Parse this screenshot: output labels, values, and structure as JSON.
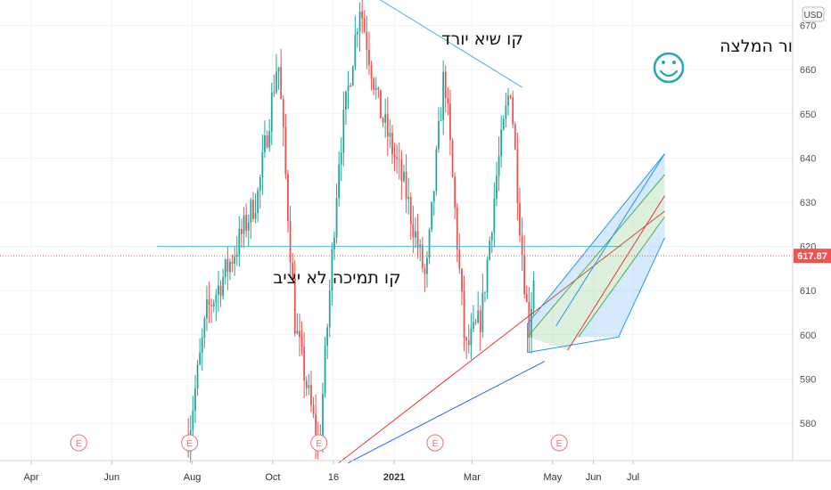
{
  "chart_data": {
    "type": "candlestick",
    "currency": "USD",
    "last_price": "617.87",
    "ylim": [
      571,
      673
    ],
    "y_ticks": [
      580,
      590,
      600,
      610,
      620,
      630,
      640,
      650,
      660,
      670
    ],
    "x_ticks": [
      {
        "label": "Apr",
        "date": "2020-04-01",
        "bold": false
      },
      {
        "label": "Jun",
        "date": "2020-06-01",
        "bold": false
      },
      {
        "label": "Aug",
        "date": "2020-08-01",
        "bold": false
      },
      {
        "label": "Oct",
        "date": "2020-10-01",
        "bold": false
      },
      {
        "label": "16",
        "date": "2020-11-16",
        "bold": false
      },
      {
        "label": "2021",
        "date": "2021-01-01",
        "bold": true
      },
      {
        "label": "Mar",
        "date": "2021-03-01",
        "bold": false
      },
      {
        "label": "May",
        "date": "2021-05-01",
        "bold": false
      },
      {
        "label": "Jun",
        "date": "2021-06-01",
        "bold": false
      },
      {
        "label": "Jul",
        "date": "2021-07-01",
        "bold": false
      }
    ],
    "key_points": [
      {
        "date": "2020-07-29",
        "price": 577
      },
      {
        "date": "2020-08-12",
        "price": 605
      },
      {
        "date": "2020-09-01",
        "price": 618
      },
      {
        "date": "2020-09-20",
        "price": 632
      },
      {
        "date": "2020-10-05",
        "price": 663
      },
      {
        "date": "2020-10-18",
        "price": 602
      },
      {
        "date": "2020-11-05",
        "price": 574
      },
      {
        "date": "2020-11-20",
        "price": 640
      },
      {
        "date": "2020-12-06",
        "price": 675
      },
      {
        "date": "2020-12-20",
        "price": 652
      },
      {
        "date": "2021-01-10",
        "price": 632
      },
      {
        "date": "2021-01-25",
        "price": 612
      },
      {
        "date": "2021-02-08",
        "price": 660
      },
      {
        "date": "2021-02-24",
        "price": 596
      },
      {
        "date": "2021-03-08",
        "price": 604
      },
      {
        "date": "2021-03-20",
        "price": 637
      },
      {
        "date": "2021-03-30",
        "price": 657
      },
      {
        "date": "2021-04-07",
        "price": 622
      },
      {
        "date": "2021-04-13",
        "price": 601
      },
      {
        "date": "2021-04-18",
        "price": 617.87
      }
    ],
    "earnings_markers": [
      "2020-05-07",
      "2020-07-30",
      "2020-11-05",
      "2021-02-01",
      "2021-05-06"
    ],
    "earnings_label": "E",
    "annotations": [
      {
        "id": "descending-top-line",
        "text": "קו שיא יורד"
      },
      {
        "id": "unstable-support-line",
        "text": "קו תמיכה לא יציב"
      },
      {
        "id": "recommendation-label",
        "text": "ור המלצה"
      }
    ],
    "emoji": "☺",
    "horizontal_support": 620,
    "descending_line": [
      {
        "date": "2020-12-15",
        "price": 677
      },
      {
        "date": "2021-04-08",
        "price": 656
      }
    ],
    "ascending_red_line": [
      {
        "date": "2020-11-20",
        "price": 571
      },
      {
        "date": "2021-07-25",
        "price": 628
      }
    ],
    "ascending_blue_line": [
      {
        "date": "2020-11-27",
        "price": 571
      },
      {
        "date": "2021-04-25",
        "price": 594
      }
    ],
    "channel": {
      "start_date": "2021-04-12",
      "end_date": "2021-07-25",
      "bottom_left": 596,
      "bottom_right_date": "2021-06-20",
      "bottom_right": 599.5,
      "top_right": 636,
      "end_price_upper": 641,
      "end_price_lower": 622
    },
    "grid": true
  }
}
